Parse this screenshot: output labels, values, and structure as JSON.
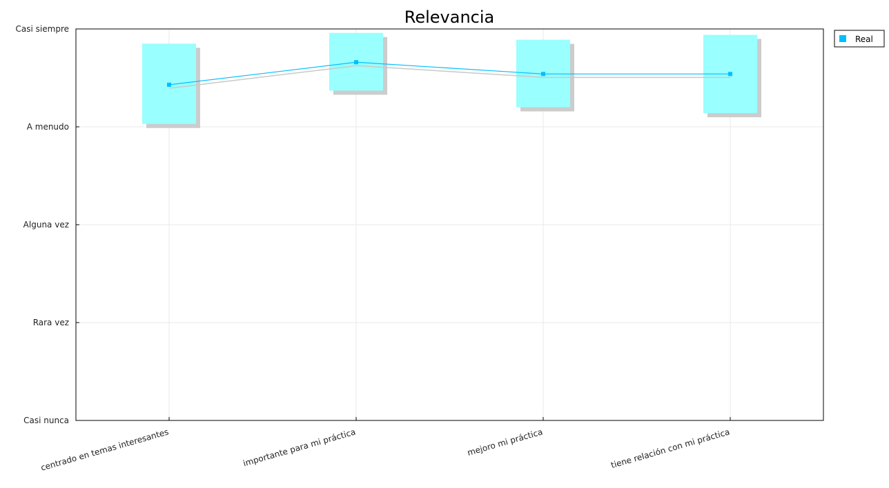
{
  "chart_data": {
    "type": "line",
    "title": "Relevancia",
    "xlabel": "",
    "ylabel": "",
    "categories": [
      "centrado en temas interesantes",
      "importante para mi práctica",
      "mejoro mi práctica",
      "tiene relación con mi práctica"
    ],
    "y_tick_labels": [
      "Casi nunca",
      "Rara vez",
      "Alguna vez",
      "A menudo",
      "Casi siempre"
    ],
    "ylim": [
      1,
      5
    ],
    "grid": true,
    "legend_position": "top-right",
    "series": [
      {
        "name": "Real",
        "color": "#00bfff",
        "values": [
          4.43,
          4.66,
          4.54,
          4.54
        ],
        "range_low": [
          4.03,
          4.37,
          4.2,
          4.14
        ],
        "range_high": [
          4.85,
          4.96,
          4.89,
          4.94
        ],
        "range_color": "#99ffff",
        "shadow_color": "#cccccc"
      }
    ]
  }
}
